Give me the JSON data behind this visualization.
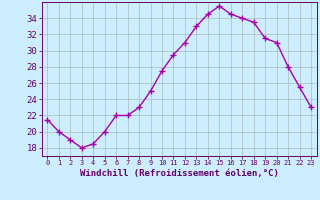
{
  "x": [
    0,
    1,
    2,
    3,
    4,
    5,
    6,
    7,
    8,
    9,
    10,
    11,
    12,
    13,
    14,
    15,
    16,
    17,
    18,
    19,
    20,
    21,
    22,
    23
  ],
  "y": [
    21.5,
    20.0,
    19.0,
    18.0,
    18.5,
    20.0,
    22.0,
    22.0,
    23.0,
    25.0,
    27.5,
    29.5,
    31.0,
    33.0,
    34.5,
    35.5,
    34.5,
    34.0,
    33.5,
    31.5,
    31.0,
    28.0,
    25.5,
    23.0
  ],
  "line_color": "#aa00aa",
  "marker": "+",
  "marker_size": 4,
  "xlabel": "Windchill (Refroidissement éolien,°C)",
  "xlim": [
    -0.5,
    23.5
  ],
  "ylim": [
    17,
    36
  ],
  "yticks": [
    18,
    20,
    22,
    24,
    26,
    28,
    30,
    32,
    34
  ],
  "xticks": [
    0,
    1,
    2,
    3,
    4,
    5,
    6,
    7,
    8,
    9,
    10,
    11,
    12,
    13,
    14,
    15,
    16,
    17,
    18,
    19,
    20,
    21,
    22,
    23
  ],
  "background_color": "#cceeff",
  "grid_color": "#aabbbb",
  "axis_color": "#660066",
  "tick_color": "#660066",
  "label_color": "#660066",
  "font_family": "monospace",
  "linewidth": 1.0,
  "markeredgewidth": 1.0
}
